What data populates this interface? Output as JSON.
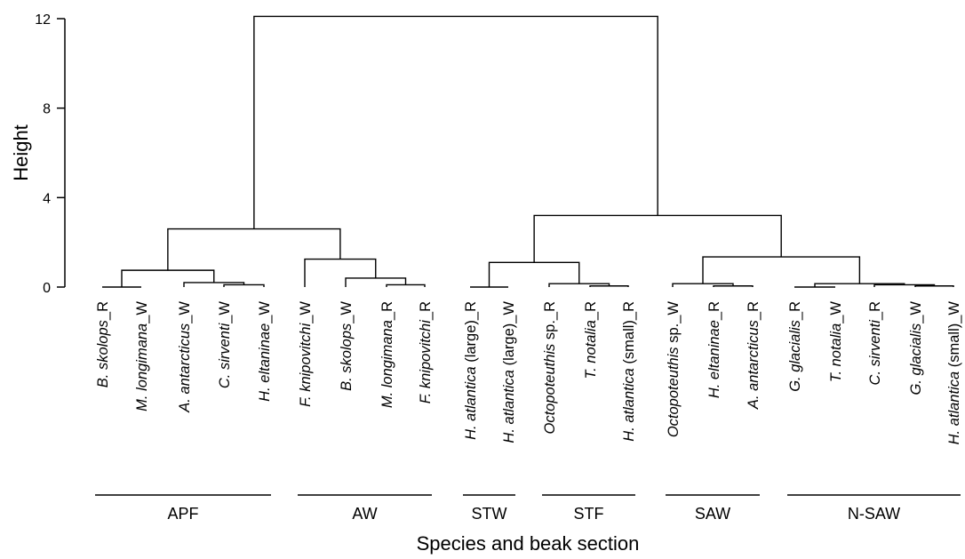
{
  "chart_data": {
    "type": "dendrogram",
    "ylabel": "Height",
    "xlabel": "Species and beak section",
    "ylim": [
      0,
      12
    ],
    "yticks": [
      "0",
      "4",
      "8",
      "12"
    ],
    "leaves": [
      {
        "genus": "B. skolops",
        "suffix": "_R"
      },
      {
        "genus": "M. longimana",
        "suffix": "_W"
      },
      {
        "genus": "A. antarcticus",
        "suffix": "_W"
      },
      {
        "genus": "C. sirventi",
        "suffix": "_W"
      },
      {
        "genus": "H. eltaninae",
        "suffix": "_W"
      },
      {
        "genus": "F. knipovitchi",
        "suffix": "_W"
      },
      {
        "genus": "B. skolops",
        "suffix": "_W"
      },
      {
        "genus": "M. longimana",
        "suffix": "_R"
      },
      {
        "genus": "F. knipovitchi",
        "suffix": "_R"
      },
      {
        "genus": "H. atlantica",
        "suffix": " (large)_R"
      },
      {
        "genus": "H. atlantica",
        "suffix": " (large)_W"
      },
      {
        "genus": "Octopoteuthis",
        "suffix": " sp._R"
      },
      {
        "genus": "T. notalia",
        "suffix": "_R"
      },
      {
        "genus": "H. atlantica",
        "suffix": " (small)_R"
      },
      {
        "genus": "Octopoteuthis",
        "suffix": " sp._W"
      },
      {
        "genus": "H. eltaninae",
        "suffix": "_R"
      },
      {
        "genus": "A. antarcticus",
        "suffix": "_R"
      },
      {
        "genus": "G. glacialis",
        "suffix": "_R"
      },
      {
        "genus": "T. notalia",
        "suffix": "_W"
      },
      {
        "genus": "C. sirventi",
        "suffix": "_R"
      },
      {
        "genus": "G. glacialis",
        "suffix": "_W"
      },
      {
        "genus": "H. atlantica",
        "suffix": " (small)_W"
      }
    ],
    "merges": [
      {
        "a": 0,
        "b": 1,
        "height": 0.0
      },
      {
        "a": 3,
        "b": 4,
        "height": 0.1
      },
      {
        "a": 2,
        "b": "m1",
        "height": 0.2
      },
      {
        "a": "m0",
        "b": "m2",
        "height": 0.75
      },
      {
        "a": 7,
        "b": 8,
        "height": 0.1
      },
      {
        "a": 6,
        "b": "m4",
        "height": 0.4
      },
      {
        "a": 5,
        "b": "m5",
        "height": 1.25
      },
      {
        "a": "m3",
        "b": "m6",
        "height": 2.6
      },
      {
        "a": 9,
        "b": 10,
        "height": 0.0
      },
      {
        "a": 12,
        "b": 13,
        "height": 0.05
      },
      {
        "a": 11,
        "b": "m9",
        "height": 0.15
      },
      {
        "a": "m8",
        "b": "m10",
        "height": 1.1
      },
      {
        "a": 15,
        "b": 16,
        "height": 0.05
      },
      {
        "a": 14,
        "b": "m12",
        "height": 0.15
      },
      {
        "a": 17,
        "b": 18,
        "height": 0.0
      },
      {
        "a": 20,
        "b": 21,
        "height": 0.05
      },
      {
        "a": 19,
        "b": "m15",
        "height": 0.1
      },
      {
        "a": "m14",
        "b": "m16",
        "height": 0.15
      },
      {
        "a": "m13",
        "b": "m17",
        "height": 1.35
      },
      {
        "a": "m11",
        "b": "m18",
        "height": 3.2
      },
      {
        "a": "m7",
        "b": "m19",
        "height": 12.1
      }
    ],
    "groups": [
      {
        "label": "APF",
        "first": 0,
        "last": 4
      },
      {
        "label": "AW",
        "first": 5,
        "last": 8
      },
      {
        "label": "STW",
        "first": 9,
        "last": 10
      },
      {
        "label": "STF",
        "first": 11,
        "last": 13
      },
      {
        "label": "SAW",
        "first": 14,
        "last": 16
      },
      {
        "label": "N-SAW",
        "first": 17,
        "last": 21
      }
    ]
  }
}
